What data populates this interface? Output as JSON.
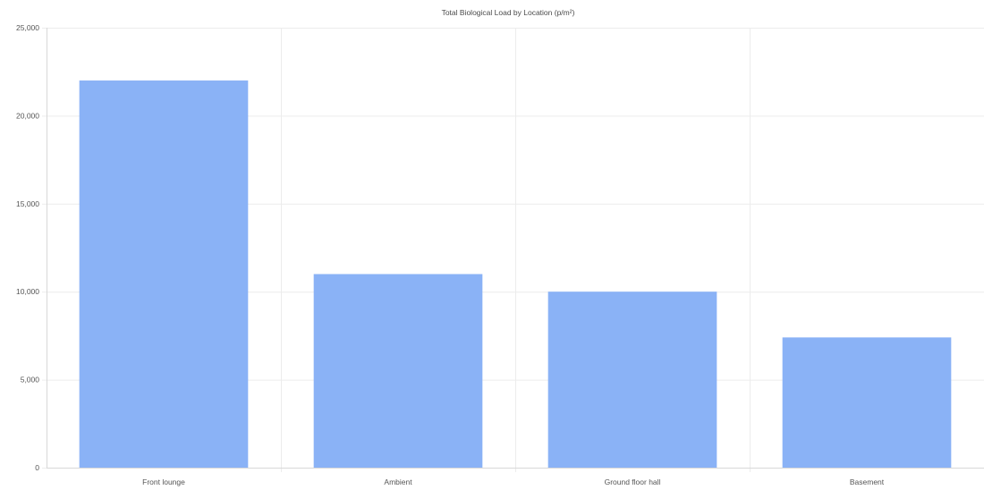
{
  "chart_data": {
    "type": "bar",
    "title": "Total Biological Load by Location (p/m²)",
    "xlabel": "",
    "ylabel": "",
    "categories": [
      "Front lounge",
      "Ambient",
      "Ground floor hall",
      "Basement"
    ],
    "values": [
      22000,
      11000,
      10000,
      7400
    ],
    "ylim": [
      0,
      25000
    ],
    "y_ticks": [
      0,
      5000,
      10000,
      15000,
      20000,
      25000
    ],
    "y_tick_labels": [
      "0",
      "5,000",
      "10,000",
      "15,000",
      "20,000",
      "25,000"
    ],
    "grid": true,
    "legend": "none",
    "bar_color": "#8ab2f6"
  }
}
